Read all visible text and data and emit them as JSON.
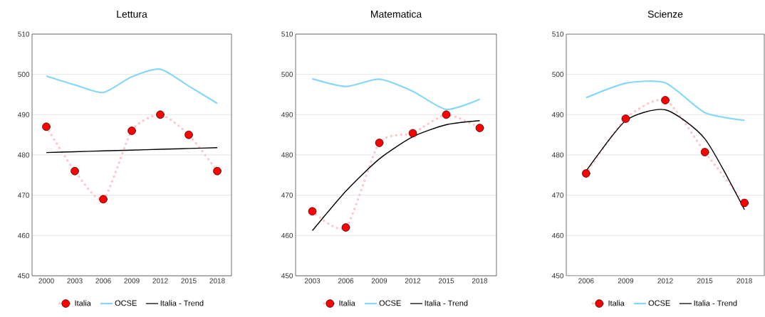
{
  "chart_data": [
    {
      "type": "line",
      "title": "Lettura",
      "categories": [
        "2000",
        "2003",
        "2006",
        "2009",
        "2012",
        "2015",
        "2018"
      ],
      "ylim": [
        450,
        510
      ],
      "yticks": [
        450,
        460,
        470,
        480,
        490,
        500,
        510
      ],
      "grid": "y",
      "legend": "bottom",
      "series": [
        {
          "name": "Italia",
          "color": "#ff0000",
          "marker": "circle",
          "line_style": "dotted",
          "values": [
            487,
            476,
            469,
            486,
            490,
            485,
            476
          ]
        },
        {
          "name": "OCSE",
          "color": "#87d7f7",
          "marker": "none",
          "line_style": "solid",
          "values": [
            499.6,
            497.4,
            495.5,
            499.4,
            501.3,
            497.1,
            492.8
          ]
        },
        {
          "name": "Italia - Trend",
          "color": "#000000",
          "marker": "none",
          "line_style": "solid",
          "values": [
            480.6,
            480.8,
            481.0,
            481.2,
            481.4,
            481.6,
            481.8
          ]
        }
      ]
    },
    {
      "type": "line",
      "title": "Matematica",
      "categories": [
        "2003",
        "2006",
        "2009",
        "2012",
        "2015",
        "2018"
      ],
      "ylim": [
        450,
        510
      ],
      "yticks": [
        450,
        460,
        470,
        480,
        490,
        500,
        510
      ],
      "grid": "y",
      "legend": "bottom",
      "series": [
        {
          "name": "Italia",
          "color": "#ff0000",
          "marker": "circle",
          "line_style": "dotted",
          "values": [
            466,
            462,
            483,
            485.4,
            490,
            486.7
          ]
        },
        {
          "name": "OCSE",
          "color": "#87d7f7",
          "marker": "none",
          "line_style": "solid",
          "values": [
            498.9,
            497.0,
            498.8,
            495.8,
            491.3,
            493.8
          ]
        },
        {
          "name": "Italia - Trend",
          "color": "#000000",
          "marker": "none",
          "line_style": "solid",
          "values": [
            461.2,
            471,
            479,
            484.5,
            487.5,
            488.5
          ]
        }
      ]
    },
    {
      "type": "line",
      "title": "Scienze",
      "categories": [
        "2006",
        "2009",
        "2012",
        "2015",
        "2018"
      ],
      "ylim": [
        450,
        510
      ],
      "yticks": [
        450,
        460,
        470,
        480,
        490,
        500,
        510
      ],
      "grid": "y",
      "legend": "bottom",
      "series": [
        {
          "name": "Italia",
          "color": "#ff0000",
          "marker": "circle",
          "line_style": "dotted",
          "values": [
            475.4,
            489,
            493.6,
            480.7,
            468.1
          ]
        },
        {
          "name": "OCSE",
          "color": "#87d7f7",
          "marker": "none",
          "line_style": "solid",
          "values": [
            494.2,
            497.8,
            497.9,
            490.5,
            488.6
          ]
        },
        {
          "name": "Italia - Trend",
          "color": "#000000",
          "marker": "none",
          "line_style": "solid",
          "values": [
            476,
            488.5,
            491.2,
            484,
            466.4
          ]
        }
      ]
    }
  ]
}
